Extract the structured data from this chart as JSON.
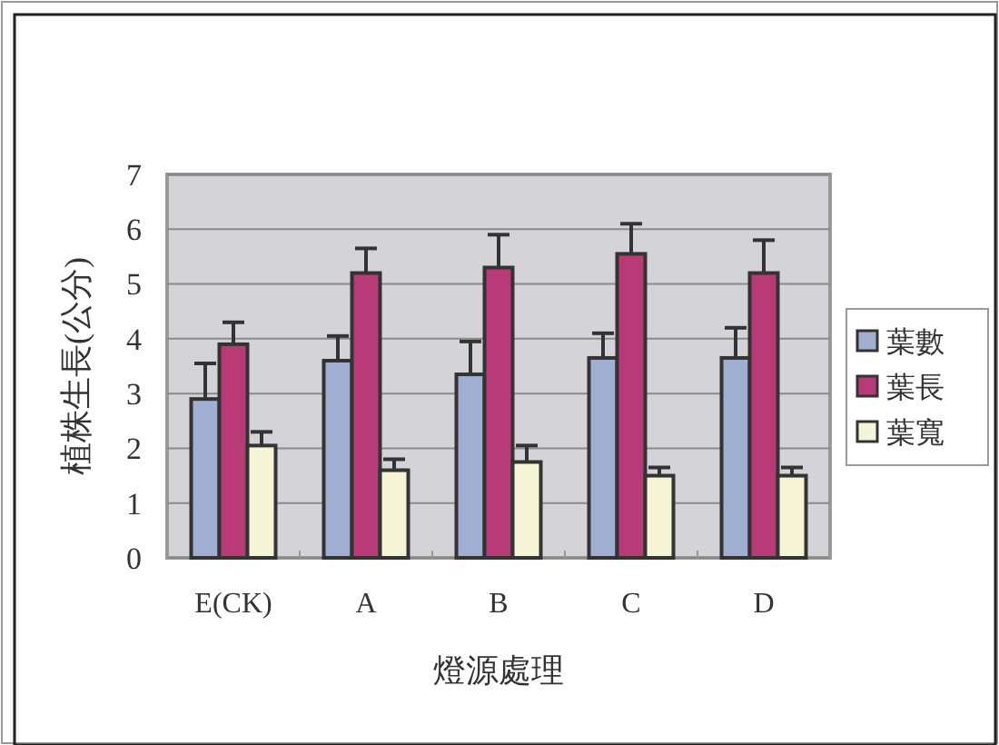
{
  "chart_data": {
    "type": "bar",
    "xlabel": "燈源處理",
    "ylabel": "植株生長(公分)",
    "categories": [
      "E(CK)",
      "A",
      "B",
      "C",
      "D"
    ],
    "series": [
      {
        "name": "葉數",
        "color": "#a0aed2",
        "values": [
          2.9,
          3.6,
          3.35,
          3.65,
          3.65
        ],
        "errors": [
          [
            2.9,
            3.55
          ],
          [
            3.6,
            4.05
          ],
          [
            3.35,
            3.95
          ],
          [
            3.65,
            4.1
          ],
          [
            3.65,
            4.2
          ]
        ]
      },
      {
        "name": "葉長",
        "color": "#b83b78",
        "values": [
          3.9,
          5.2,
          5.3,
          5.55,
          5.2
        ],
        "errors": [
          [
            3.9,
            4.3
          ],
          [
            5.2,
            5.65
          ],
          [
            5.3,
            5.9
          ],
          [
            5.55,
            6.1
          ],
          [
            5.2,
            5.8
          ]
        ]
      },
      {
        "name": "葉寬",
        "color": "#f5f5d5",
        "values": [
          2.05,
          1.6,
          1.75,
          1.5,
          1.5
        ],
        "errors": [
          [
            2.05,
            2.3
          ],
          [
            1.6,
            1.8
          ],
          [
            1.75,
            2.05
          ],
          [
            1.5,
            1.65
          ],
          [
            1.5,
            1.65
          ]
        ]
      }
    ],
    "ylim": [
      0,
      7
    ],
    "yticks": [
      0,
      1,
      2,
      3,
      4,
      5,
      6,
      7
    ],
    "grid": "y",
    "legend": "right"
  }
}
